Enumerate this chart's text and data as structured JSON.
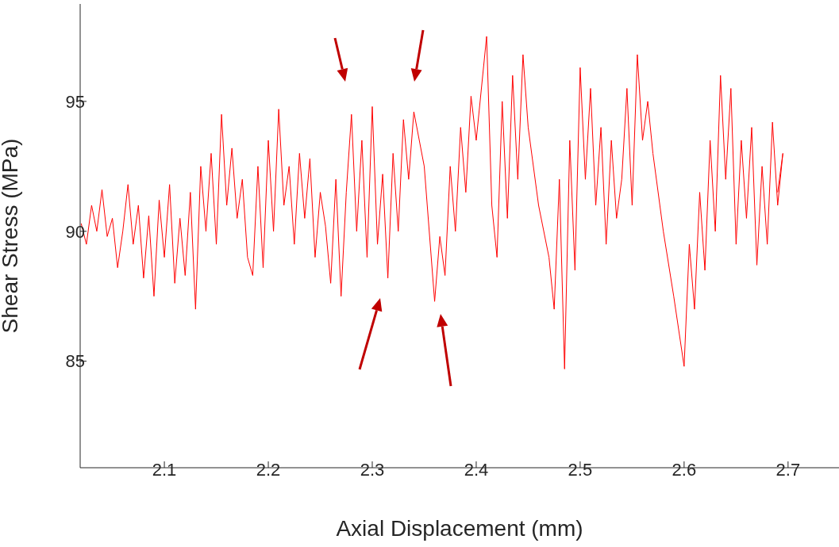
{
  "chart_data": {
    "type": "line",
    "xlabel": "Axial Displacement (mm)",
    "ylabel": "Shear Stress (MPa)",
    "xlim": [
      2.019,
      2.749
    ],
    "xticks": [
      2.1,
      2.2,
      2.3,
      2.4,
      2.5,
      2.6,
      2.7
    ],
    "ylim": [
      80.9,
      98.75
    ],
    "yticks": [
      85,
      90,
      95
    ],
    "grid": false,
    "marker": "none",
    "line_style": "solid",
    "series": [
      {
        "color": "#ff0000",
        "x": [
          2.02,
          2.025,
          2.03,
          2.035,
          2.04,
          2.045,
          2.05,
          2.055,
          2.06,
          2.065,
          2.07,
          2.075,
          2.08,
          2.085,
          2.09,
          2.095,
          2.1,
          2.105,
          2.11,
          2.115,
          2.12,
          2.125,
          2.13,
          2.135,
          2.14,
          2.145,
          2.15,
          2.155,
          2.16,
          2.165,
          2.17,
          2.175,
          2.18,
          2.185,
          2.19,
          2.195,
          2.2,
          2.205,
          2.21,
          2.215,
          2.22,
          2.225,
          2.23,
          2.235,
          2.24,
          2.245,
          2.25,
          2.255,
          2.26,
          2.265,
          2.27,
          2.275,
          2.28,
          2.285,
          2.29,
          2.295,
          2.3,
          2.305,
          2.31,
          2.315,
          2.32,
          2.325,
          2.33,
          2.335,
          2.34,
          2.35,
          2.36,
          2.365,
          2.37,
          2.375,
          2.38,
          2.385,
          2.39,
          2.395,
          2.4,
          2.41,
          2.415,
          2.42,
          2.425,
          2.43,
          2.435,
          2.44,
          2.445,
          2.45,
          2.46,
          2.47,
          2.475,
          2.48,
          2.485,
          2.49,
          2.495,
          2.5,
          2.505,
          2.51,
          2.515,
          2.52,
          2.525,
          2.53,
          2.535,
          2.54,
          2.545,
          2.55,
          2.555,
          2.56,
          2.565,
          2.57,
          2.58,
          2.59,
          2.6,
          2.605,
          2.61,
          2.615,
          2.62,
          2.625,
          2.63,
          2.635,
          2.64,
          2.645,
          2.65,
          2.655,
          2.66,
          2.665,
          2.67,
          2.675,
          2.68,
          2.685,
          2.69,
          2.695,
          2.69
        ],
        "values": [
          90.3,
          89.5,
          91.0,
          90.0,
          91.6,
          89.8,
          90.5,
          88.6,
          90.0,
          91.8,
          89.5,
          91.0,
          88.2,
          90.6,
          87.5,
          91.2,
          89.0,
          91.8,
          88.0,
          90.5,
          88.3,
          91.5,
          87.0,
          92.5,
          90.0,
          93.0,
          89.5,
          94.5,
          91.0,
          93.2,
          90.5,
          92.0,
          89.0,
          88.3,
          92.5,
          88.6,
          93.5,
          90.0,
          94.7,
          91.0,
          92.5,
          89.5,
          93.0,
          90.5,
          92.8,
          89.0,
          91.5,
          90.2,
          88.0,
          92.0,
          87.5,
          91.5,
          94.5,
          90.0,
          93.5,
          89.0,
          94.8,
          89.5,
          92.2,
          88.2,
          93.0,
          90.0,
          94.3,
          92.0,
          94.6,
          92.5,
          87.3,
          89.8,
          88.3,
          92.5,
          90.0,
          94.0,
          91.5,
          95.2,
          93.5,
          97.5,
          91.0,
          89.0,
          95.0,
          90.5,
          96.0,
          92.0,
          96.8,
          94.0,
          91.0,
          89.0,
          87.0,
          92.0,
          84.7,
          93.5,
          88.5,
          96.3,
          92.0,
          95.5,
          91.0,
          94.0,
          89.5,
          93.5,
          90.5,
          92.0,
          95.5,
          91.0,
          96.8,
          93.5,
          95.0,
          93.0,
          90.0,
          87.5,
          84.8,
          89.5,
          87.0,
          91.5,
          88.5,
          93.5,
          90.0,
          96.0,
          92.0,
          95.5,
          89.5,
          93.5,
          90.5,
          94.0,
          88.7,
          92.5,
          89.5,
          94.2,
          91.0,
          93.0,
          91.5
        ]
      }
    ]
  }
}
